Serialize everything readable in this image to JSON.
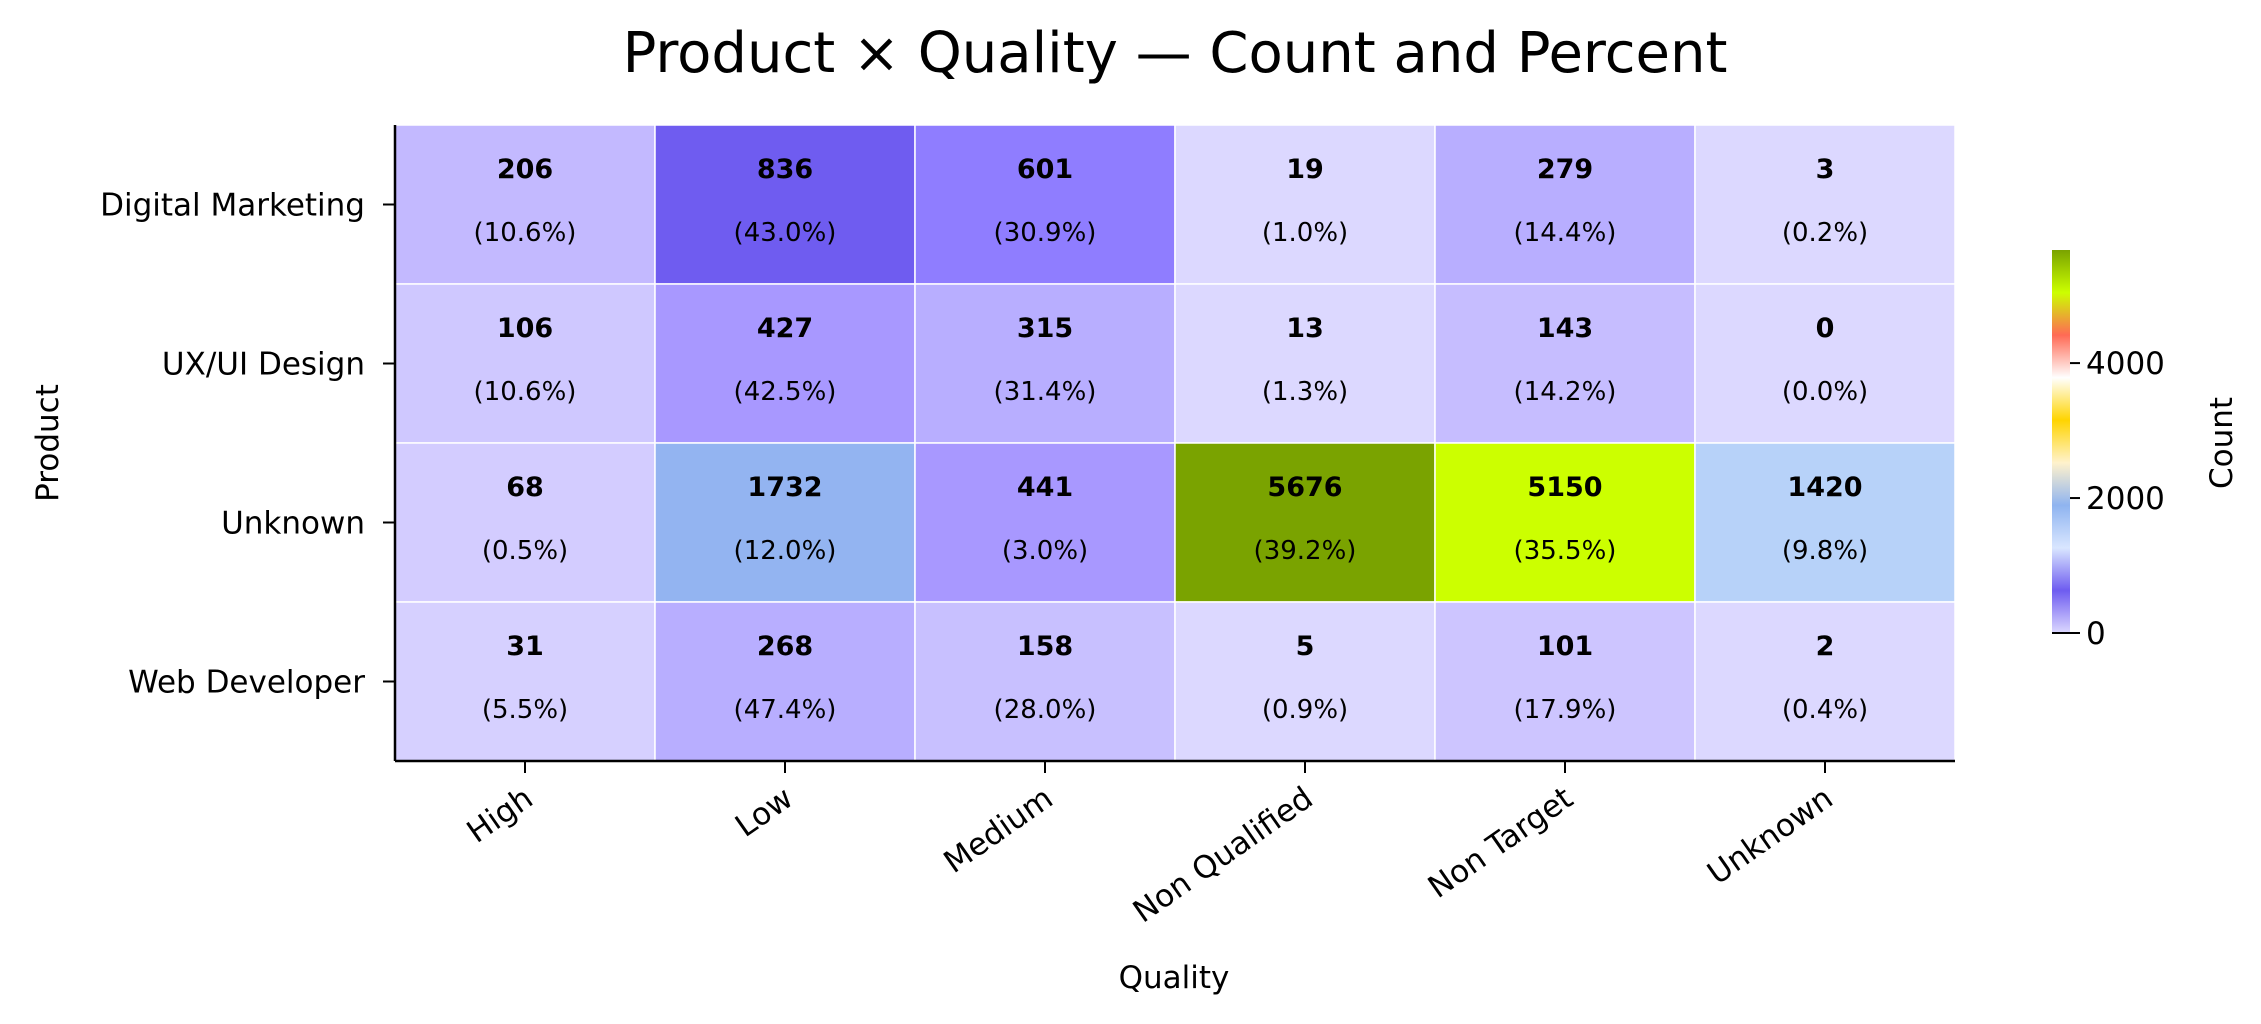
{
  "chart_data": {
    "type": "heatmap",
    "title": "Product × Quality — Count and Percent",
    "xlabel": "Quality",
    "ylabel": "Product",
    "x_categories": [
      "High",
      "Low",
      "Medium",
      "Non Qualified",
      "Non Target",
      "Unknown"
    ],
    "y_categories": [
      "Digital Marketing",
      "UX/UI Design",
      "Unknown",
      "Web Developer"
    ],
    "values": [
      [
        206,
        836,
        601,
        19,
        279,
        3
      ],
      [
        106,
        427,
        315,
        13,
        143,
        0
      ],
      [
        68,
        1732,
        441,
        5676,
        5150,
        1420
      ],
      [
        31,
        268,
        158,
        5,
        101,
        2
      ]
    ],
    "percents": [
      [
        "(10.6%)",
        "(43.0%)",
        "(30.9%)",
        "(1.0%)",
        "(14.4%)",
        "(0.2%)"
      ],
      [
        "(10.6%)",
        "(42.5%)",
        "(31.4%)",
        "(1.3%)",
        "(14.2%)",
        "(0.0%)"
      ],
      [
        "(0.5%)",
        "(12.0%)",
        "(3.0%)",
        "(39.2%)",
        "(35.5%)",
        "(9.8%)"
      ],
      [
        "(5.5%)",
        "(47.4%)",
        "(28.0%)",
        "(0.9%)",
        "(17.9%)",
        "(0.4%)"
      ]
    ],
    "colorbar": {
      "label": "Count",
      "range": [
        0,
        5676
      ],
      "ticks": [
        0,
        2000,
        4000
      ],
      "colors": [
        "#dcd8ff",
        "#6e5cf0",
        "#d9e6ff",
        "#8fb4f0",
        "#fff2cc",
        "#ffd400",
        "#ffffff",
        "#ff6a55",
        "#ccff00",
        "#7aa300"
      ]
    },
    "cell_colors": [
      [
        "#c3b9ff",
        "#6f5cf0",
        "#8f7dff",
        "#dcd8ff",
        "#b8aeff",
        "#dcd8ff"
      ],
      [
        "#cfc8ff",
        "#a898ff",
        "#b8aeff",
        "#dcd8ff",
        "#c6bdff",
        "#dcd8ff"
      ],
      [
        "#d3ccff",
        "#93b4f1",
        "#a898ff",
        "#7aa300",
        "#ccff00",
        "#b7d2f9"
      ],
      [
        "#d6d0ff",
        "#b8aeff",
        "#c8c0ff",
        "#dcd8ff",
        "#cdc5ff",
        "#dcd8ff"
      ]
    ]
  }
}
